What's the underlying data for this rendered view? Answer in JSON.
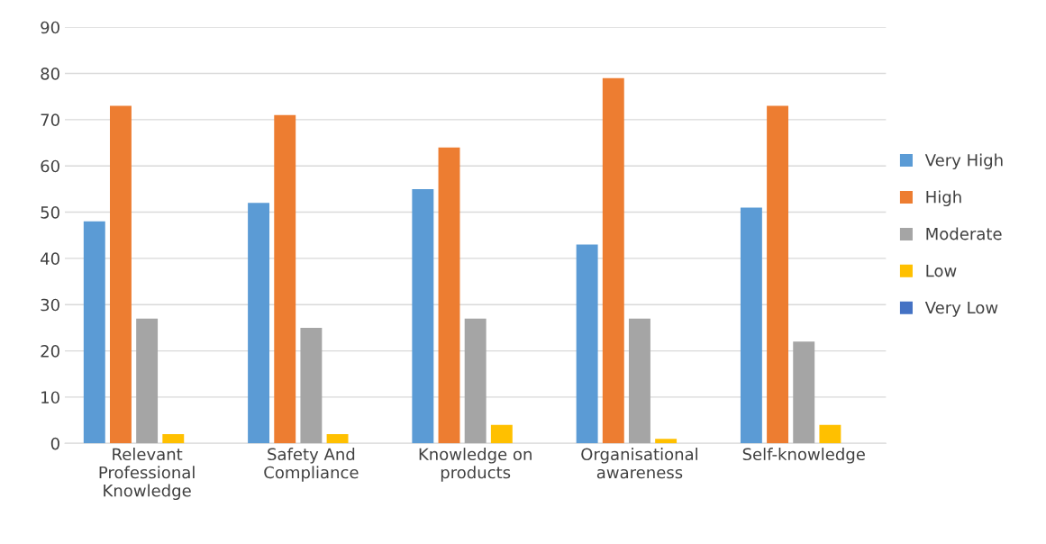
{
  "chart_data": {
    "type": "bar",
    "categories": [
      "Relevant\nProfessional\nKnowledge",
      "Safety And\nCompliance",
      "Knowledge on\nproducts",
      "Organisational\nawareness",
      "Self-knowledge"
    ],
    "series": [
      {
        "name": "Very High",
        "color": "#5b9bd5",
        "values": [
          48,
          52,
          55,
          43,
          51
        ]
      },
      {
        "name": "High",
        "color": "#ed7d31",
        "values": [
          73,
          71,
          64,
          79,
          73
        ]
      },
      {
        "name": "Moderate",
        "color": "#a5a5a5",
        "values": [
          27,
          25,
          27,
          27,
          22
        ]
      },
      {
        "name": "Low",
        "color": "#ffc000",
        "values": [
          2,
          2,
          4,
          1,
          4
        ]
      },
      {
        "name": "Very Low",
        "color": "#4472c4",
        "values": [
          0,
          0,
          0,
          0,
          0
        ]
      }
    ],
    "ylim": [
      0,
      90
    ],
    "yticks": [
      0,
      10,
      20,
      30,
      40,
      50,
      60,
      70,
      80,
      90
    ],
    "grid": "y",
    "legend": "right"
  }
}
